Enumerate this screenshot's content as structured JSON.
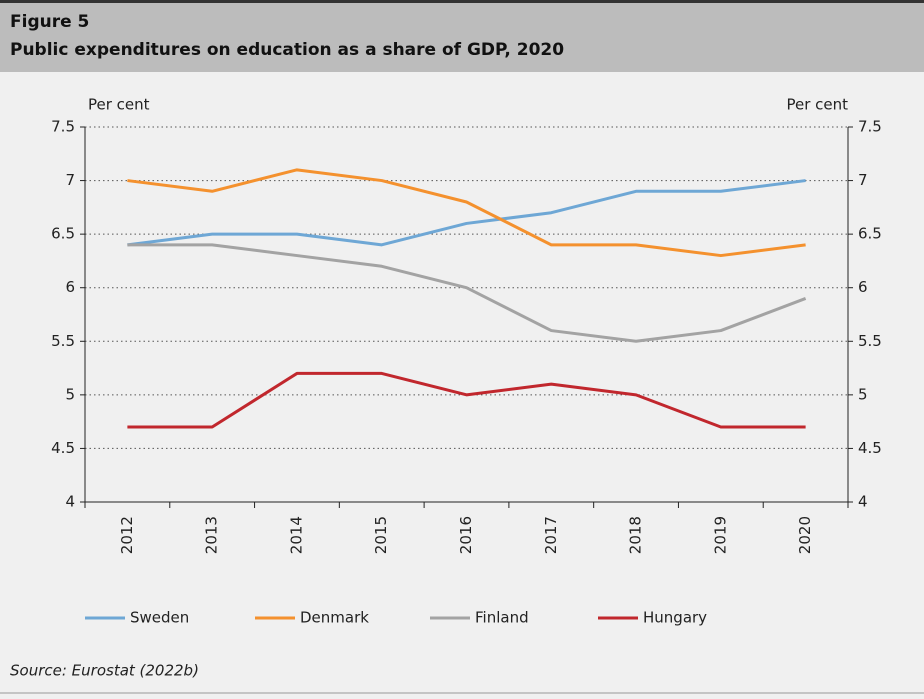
{
  "chart_data": {
    "type": "line",
    "title": "Figure 5",
    "subtitle": "Public expenditures on education as a share of GDP, 2020",
    "y_label": "Per cent",
    "y2_label": "Per cent",
    "source": "Source: Eurostat (2022b)",
    "categories": [
      "2012",
      "2013",
      "2014",
      "2015",
      "2016",
      "2017",
      "2018",
      "2019",
      "2020"
    ],
    "series": [
      {
        "name": "Sweden",
        "color": "#6ea7d5",
        "values": [
          6.4,
          6.5,
          6.5,
          6.4,
          6.6,
          6.7,
          6.9,
          6.9,
          7.0
        ]
      },
      {
        "name": "Denmark",
        "color": "#f4912e",
        "values": [
          7.0,
          6.9,
          7.1,
          7.0,
          6.8,
          6.4,
          6.4,
          6.3,
          6.4
        ]
      },
      {
        "name": "Finland",
        "color": "#a3a3a3",
        "values": [
          6.4,
          6.4,
          6.3,
          6.2,
          6.0,
          5.6,
          5.5,
          5.6,
          5.9
        ]
      },
      {
        "name": "Hungary",
        "color": "#c1272d",
        "values": [
          4.7,
          4.7,
          5.2,
          5.2,
          5.0,
          5.1,
          5.0,
          4.7,
          4.7
        ]
      }
    ],
    "ylim": [
      4,
      7.5
    ],
    "yticks": [
      4,
      4.5,
      5,
      5.5,
      6,
      6.5,
      7,
      7.5
    ],
    "y2lim": [
      4,
      7.5
    ],
    "y2ticks": [
      4,
      4.5,
      5,
      5.5,
      6,
      6.5,
      7,
      7.5
    ],
    "grid": true,
    "legend": "bottom"
  }
}
